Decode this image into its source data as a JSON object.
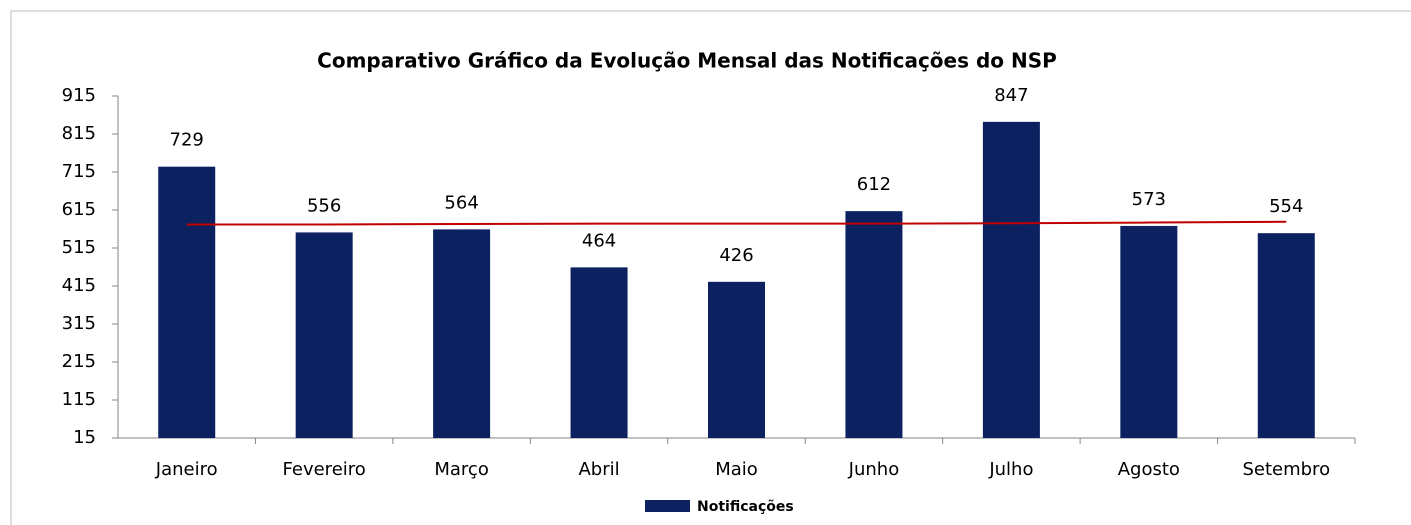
{
  "chart_data": {
    "type": "bar",
    "title": "Comparativo Gráfico da Evolução Mensal das Notificações do NSP",
    "categories": [
      "Janeiro",
      "Fevereiro",
      "Março",
      "Abril",
      "Maio",
      "Junho",
      "Julho",
      "Agosto",
      "Setembro"
    ],
    "series": [
      {
        "name": "Notificações",
        "color": "#0c2160",
        "values": [
          729,
          556,
          564,
          464,
          426,
          612,
          847,
          573,
          554
        ]
      },
      {
        "type": "line",
        "color": "#c00000",
        "values": [
          577,
          577,
          578,
          579,
          579,
          579,
          580,
          582,
          584
        ]
      }
    ],
    "ylim": [
      15,
      915
    ],
    "yticks": [
      15,
      115,
      215,
      315,
      415,
      515,
      615,
      715,
      815,
      915
    ],
    "grid": false,
    "legend": "bottom"
  }
}
